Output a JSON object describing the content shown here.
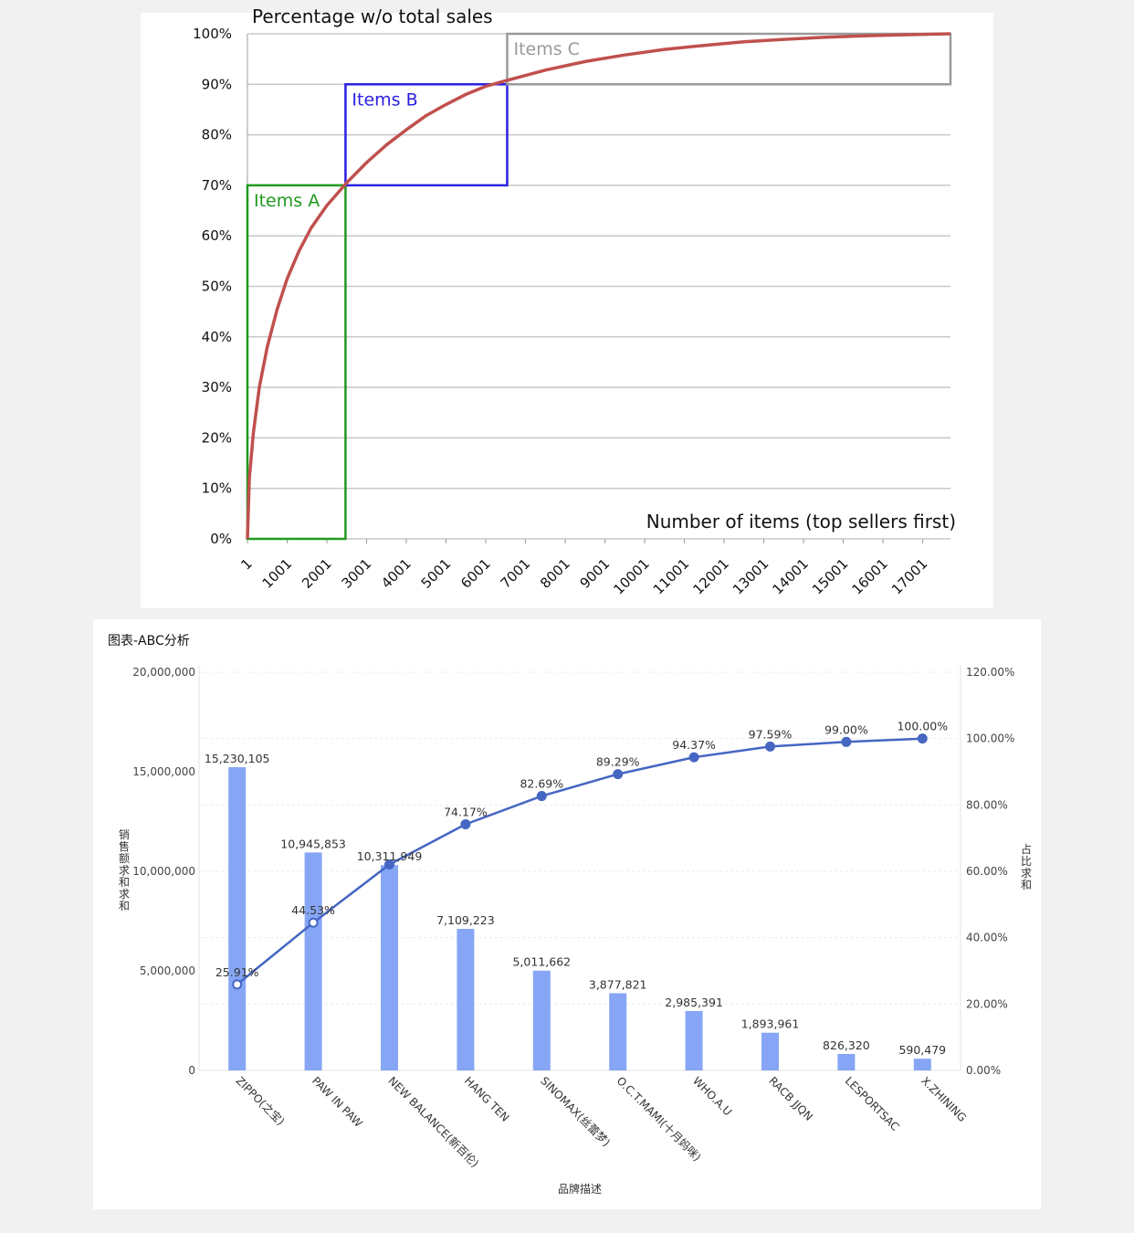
{
  "chart_data": [
    {
      "type": "line",
      "title": "Percentage w/o total sales",
      "xlabel": "Number of items (top sellers first)",
      "ylabel": "",
      "x_ticks": [
        "1",
        "1001",
        "2001",
        "3001",
        "4001",
        "5001",
        "6001",
        "7001",
        "8001",
        "9001",
        "10001",
        "11001",
        "12001",
        "13001",
        "14001",
        "15001",
        "16001",
        "17001"
      ],
      "y_ticks": [
        "0%",
        "10%",
        "20%",
        "30%",
        "40%",
        "50%",
        "60%",
        "70%",
        "80%",
        "90%",
        "100%"
      ],
      "xlim": [
        1,
        17700
      ],
      "ylim": [
        0,
        100
      ],
      "grid": true,
      "series": [
        {
          "x": [
            1,
            50,
            150,
            300,
            500,
            750,
            1000,
            1300,
            1600,
            2000,
            2500,
            3000,
            3500,
            4000,
            4500,
            5000,
            5500,
            6000,
            6500,
            7500,
            8500,
            9500,
            10500,
            11500,
            12500,
            13500,
            14500,
            15500,
            16500,
            17700
          ],
          "y": [
            0,
            12,
            21,
            30,
            38,
            45.5,
            51.5,
            57,
            61.5,
            66,
            70.5,
            74.5,
            78,
            81,
            83.8,
            86,
            88,
            89.6,
            90.7,
            92.8,
            94.5,
            95.8,
            96.9,
            97.7,
            98.4,
            98.9,
            99.3,
            99.6,
            99.8,
            100
          ]
        }
      ],
      "annotations": [
        {
          "label": "Items A",
          "x_range": [
            1,
            2470
          ],
          "y_range": [
            0,
            70
          ],
          "color": "#1f9a1f"
        },
        {
          "label": "Items B",
          "x_range": [
            2470,
            6540
          ],
          "y_range": [
            70,
            90
          ],
          "color": "#2a1fe0"
        },
        {
          "label": "Items C",
          "x_range": [
            6540,
            17700
          ],
          "y_range": [
            90,
            100
          ],
          "color": "#9a9a9a"
        }
      ],
      "colors": {
        "line": "#c0504d"
      }
    },
    {
      "type": "bar",
      "title": "图表-ABC分析",
      "xlabel": "品牌描述",
      "ylabel": "销售额求和求和",
      "y2label": "占比求和",
      "categories": [
        "ZIPPO(之宝)",
        "PAW IN PAW",
        "NEW BALANCE(新百伦)",
        "HANG TEN",
        "SINOMAX(丝蕾梦)",
        "O.C.T.MAMI(十月妈咪)",
        "WHO.A.U",
        "RACB JJQN",
        "LESPORTSAC",
        "X.ZHINING"
      ],
      "series": [
        {
          "type": "bar",
          "axis": "left",
          "values": [
            15230105,
            10945853,
            10311949,
            7109223,
            5011662,
            3877821,
            2985391,
            1893961,
            826320,
            590479
          ],
          "labels": [
            "15,230,105",
            "10,945,853",
            "10,311,949",
            "7,109,223",
            "5,011,662",
            "3,877,821",
            "2,985,391",
            "1,893,961",
            "826,320",
            "590,479"
          ]
        },
        {
          "type": "line",
          "axis": "right",
          "values": [
            25.91,
            44.53,
            62.07,
            74.17,
            82.69,
            89.29,
            94.37,
            97.59,
            99.0,
            100.0
          ],
          "labels": [
            "25.91%",
            "44.53%",
            "",
            "74.17%",
            "82.69%",
            "89.29%",
            "94.37%",
            "97.59%",
            "99.00%",
            "100.00%"
          ]
        }
      ],
      "y_ticks": [
        "0",
        "5,000,000",
        "10,000,000",
        "15,000,000",
        "20,000,000"
      ],
      "y2_ticks": [
        "0.00%",
        "20.00%",
        "40.00%",
        "60.00%",
        "80.00%",
        "100.00%",
        "120.00%"
      ],
      "ylim": [
        0,
        20000000
      ],
      "y2lim": [
        0,
        120
      ],
      "grid": true,
      "colors": {
        "bar": "#86a6f5",
        "line": "#4566c2"
      }
    }
  ]
}
